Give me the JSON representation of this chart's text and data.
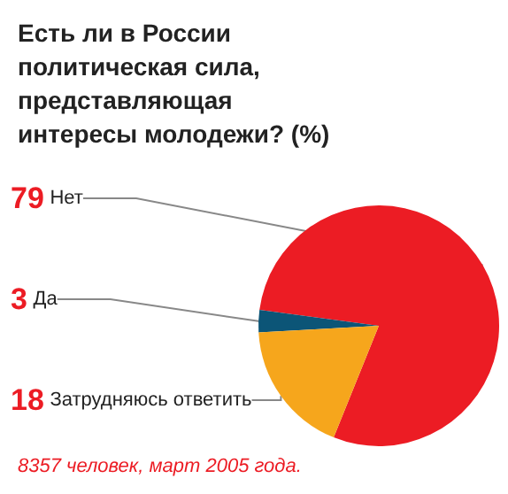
{
  "chart_data": {
    "type": "pie",
    "title": "Есть ли в России политическая сила, представляющая интересы молодежи? (%)",
    "categories": [
      "Нет",
      "Да",
      "Затрудняюсь ответить"
    ],
    "values": [
      79,
      3,
      18
    ],
    "colors": [
      "#ec1c24",
      "#0c5577",
      "#f6a61c"
    ],
    "data_labels": true,
    "legend": false,
    "annotations": [
      "8357 человек, март 2005 года."
    ]
  }
}
